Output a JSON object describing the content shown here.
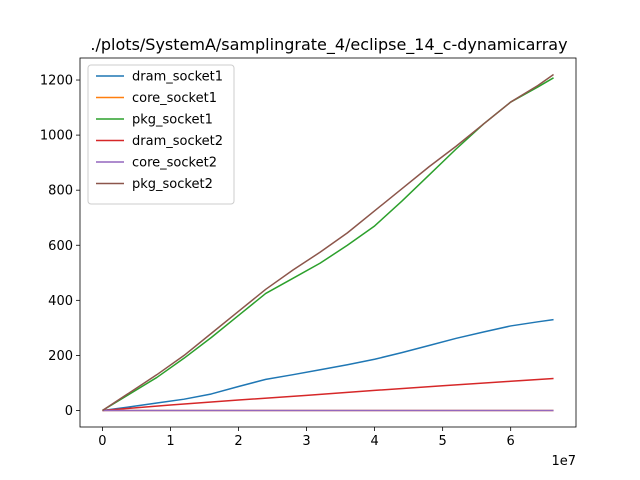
{
  "chart_data": {
    "type": "line",
    "title": "./plots/SystemA/samplingrate_4/eclipse_14_c-dynamicarray",
    "xlabel": "",
    "ylabel": "",
    "x_offset_text": "1e7",
    "xlim": [
      -3300000,
      69600000
    ],
    "ylim": [
      -60,
      1280
    ],
    "x_ticks": [
      0,
      10000000,
      20000000,
      30000000,
      40000000,
      50000000,
      60000000
    ],
    "x_tick_labels": [
      "0",
      "1",
      "2",
      "3",
      "4",
      "5",
      "6"
    ],
    "y_ticks": [
      0,
      200,
      400,
      600,
      800,
      1000,
      1200
    ],
    "y_tick_labels": [
      "0",
      "200",
      "400",
      "600",
      "800",
      "1000",
      "1200"
    ],
    "grid": false,
    "legend_position": "top-left",
    "series": [
      {
        "name": "dram_socket1",
        "color": "#1f77b4",
        "x": [
          0,
          4000000,
          8000000,
          12000000,
          16000000,
          20000000,
          24000000,
          28000000,
          32000000,
          36000000,
          40000000,
          44000000,
          48000000,
          52000000,
          56000000,
          60000000,
          64000000,
          66300000
        ],
        "y": [
          0,
          13,
          27,
          41,
          60,
          87,
          113,
          130,
          148,
          166,
          186,
          210,
          236,
          262,
          285,
          307,
          322,
          330
        ]
      },
      {
        "name": "core_socket1",
        "color": "#ff7f0e",
        "x": [
          0,
          10000000,
          20000000,
          30000000,
          40000000,
          50000000,
          60000000,
          66300000
        ],
        "y": [
          0,
          0,
          0,
          0,
          0,
          0,
          0,
          0
        ]
      },
      {
        "name": "pkg_socket1",
        "color": "#2ca02c",
        "x": [
          0,
          4000000,
          8000000,
          12000000,
          16000000,
          20000000,
          24000000,
          28000000,
          32000000,
          36000000,
          40000000,
          44000000,
          48000000,
          52000000,
          56000000,
          60000000,
          64000000,
          66300000
        ],
        "y": [
          0,
          60,
          120,
          190,
          265,
          345,
          425,
          480,
          535,
          600,
          670,
          760,
          855,
          950,
          1040,
          1120,
          1175,
          1208
        ]
      },
      {
        "name": "dram_socket2",
        "color": "#d62728",
        "x": [
          0,
          10000000,
          20000000,
          30000000,
          40000000,
          50000000,
          60000000,
          66300000
        ],
        "y": [
          0,
          20,
          38,
          55,
          73,
          90,
          106,
          116
        ]
      },
      {
        "name": "core_socket2",
        "color": "#9467bd",
        "x": [
          0,
          10000000,
          20000000,
          30000000,
          40000000,
          50000000,
          60000000,
          66300000
        ],
        "y": [
          0,
          0,
          0,
          0,
          0,
          0,
          0,
          0
        ]
      },
      {
        "name": "pkg_socket2",
        "color": "#8c564b",
        "x": [
          0,
          4000000,
          8000000,
          12000000,
          16000000,
          20000000,
          24000000,
          28000000,
          32000000,
          36000000,
          40000000,
          44000000,
          48000000,
          52000000,
          56000000,
          60000000,
          64000000,
          66300000
        ],
        "y": [
          0,
          65,
          130,
          200,
          280,
          360,
          440,
          510,
          575,
          645,
          725,
          805,
          885,
          960,
          1040,
          1120,
          1180,
          1220
        ]
      }
    ]
  }
}
